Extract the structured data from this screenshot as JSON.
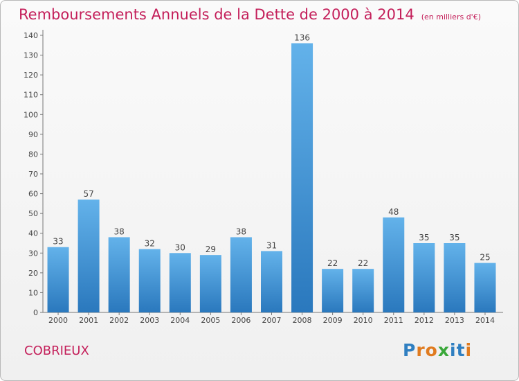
{
  "chart_data": {
    "type": "bar",
    "title": "Remboursements Annuels de la Dette de 2000 à 2014",
    "subtitle": "(en milliers d'€)",
    "categories": [
      "2000",
      "2001",
      "2002",
      "2003",
      "2004",
      "2005",
      "2006",
      "2007",
      "2008",
      "2009",
      "2010",
      "2011",
      "2012",
      "2013",
      "2014"
    ],
    "values": [
      33,
      57,
      38,
      32,
      30,
      29,
      38,
      31,
      136,
      22,
      22,
      48,
      35,
      35,
      25
    ],
    "data_labels": [
      "33",
      "57",
      "38",
      "32",
      "30",
      "29",
      "38",
      "31",
      "136",
      "22",
      "22",
      "48",
      "35",
      "35",
      "25"
    ],
    "ylim": [
      0,
      140
    ],
    "yticks": [
      0,
      10,
      20,
      30,
      40,
      50,
      60,
      70,
      80,
      90,
      100,
      110,
      120,
      130,
      140
    ],
    "xlabel": "",
    "ylabel": "",
    "grid": false,
    "bar_color": "#3d8fd3"
  },
  "footer": {
    "city": "COBRIEUX",
    "logo": "Proxiti"
  },
  "colors": {
    "title": "#c41f5a",
    "axis": "#555555",
    "logo_letters": [
      "#2f7fc1",
      "#e07b1f",
      "#e07b1f",
      "#3aa83a",
      "#2f7fc1",
      "#2f7fc1",
      "#e07b1f"
    ]
  }
}
